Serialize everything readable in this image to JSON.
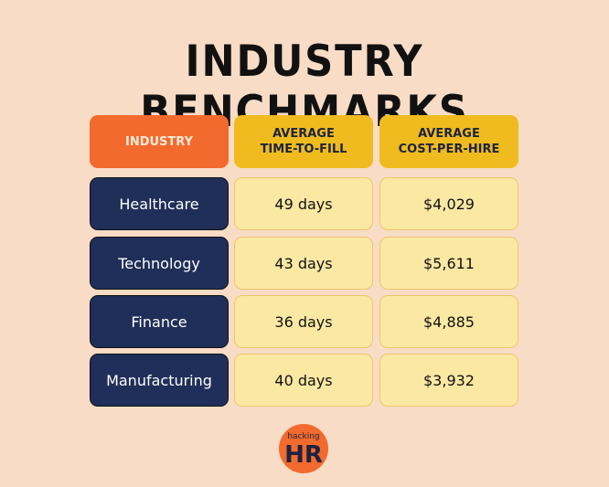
{
  "header": {
    "title": "INDUSTRY BENCHMARKS"
  },
  "table": {
    "columns": [
      [
        "INDUSTRY"
      ],
      [
        "AVERAGE",
        "TIME-TO-FILL"
      ],
      [
        "AVERAGE",
        "COST-PER-HIRE"
      ]
    ],
    "rows": [
      [
        "Healthcare",
        "49 days",
        "$4,029"
      ],
      [
        "Technology",
        "43 days",
        "$5,611"
      ],
      [
        "Finance",
        "36 days",
        "$4,885"
      ],
      [
        "Manufacturing",
        "40 days",
        "$3,932"
      ]
    ]
  },
  "logo": {
    "small": "hacking",
    "big": "HR"
  }
}
